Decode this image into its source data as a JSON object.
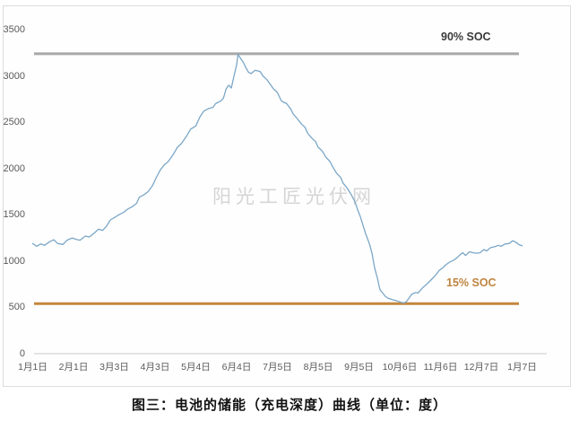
{
  "watermark": {
    "text": "阳光工匠光伏网"
  },
  "caption": {
    "text": "图三：电池的储能（充电深度）曲线（单位：度）"
  },
  "chart_data": {
    "type": "line",
    "title": "",
    "xlabel": "",
    "ylabel": "",
    "unit": "度",
    "ylim": [
      0,
      3500
    ],
    "grid": false,
    "legend": false,
    "axis_color": "#c9c9c9",
    "tick_label_color": "#595959",
    "y_ticks": [
      0,
      500,
      1000,
      1500,
      2000,
      2500,
      3000,
      3500
    ],
    "x_ticks": [
      {
        "label": "1月1日",
        "day": 0
      },
      {
        "label": "2月1日",
        "day": 31
      },
      {
        "label": "3月3日",
        "day": 62
      },
      {
        "label": "4月3日",
        "day": 93
      },
      {
        "label": "5月4日",
        "day": 124
      },
      {
        "label": "6月4日",
        "day": 155
      },
      {
        "label": "7月5日",
        "day": 186
      },
      {
        "label": "8月5日",
        "day": 217
      },
      {
        "label": "9月5日",
        "day": 248
      },
      {
        "label": "10月6日",
        "day": 279
      },
      {
        "label": "11月6日",
        "day": 310
      },
      {
        "label": "12月7日",
        "day": 341
      },
      {
        "label": "1月7日",
        "day": 372
      }
    ],
    "ref_lines": [
      {
        "label": "90% SOC",
        "value": 3240,
        "color": "#a8a8a8"
      },
      {
        "label": "15% SOC",
        "value": 540,
        "color": "#c3873d"
      }
    ],
    "series": [
      {
        "color": "#7ba7c7",
        "points": [
          [
            0,
            1190
          ],
          [
            3,
            1160
          ],
          [
            6,
            1185
          ],
          [
            9,
            1170
          ],
          [
            13,
            1210
          ],
          [
            16,
            1230
          ],
          [
            19,
            1190
          ],
          [
            23,
            1180
          ],
          [
            26,
            1225
          ],
          [
            30,
            1250
          ],
          [
            33,
            1235
          ],
          [
            36,
            1225
          ],
          [
            40,
            1270
          ],
          [
            43,
            1260
          ],
          [
            47,
            1305
          ],
          [
            50,
            1345
          ],
          [
            53,
            1330
          ],
          [
            56,
            1375
          ],
          [
            59,
            1445
          ],
          [
            62,
            1470
          ],
          [
            66,
            1505
          ],
          [
            69,
            1525
          ],
          [
            72,
            1560
          ],
          [
            76,
            1590
          ],
          [
            79,
            1625
          ],
          [
            81,
            1690
          ],
          [
            85,
            1720
          ],
          [
            88,
            1755
          ],
          [
            91,
            1815
          ],
          [
            94,
            1905
          ],
          [
            97,
            1985
          ],
          [
            100,
            2040
          ],
          [
            103,
            2075
          ],
          [
            107,
            2155
          ],
          [
            110,
            2230
          ],
          [
            113,
            2270
          ],
          [
            117,
            2350
          ],
          [
            120,
            2425
          ],
          [
            124,
            2460
          ],
          [
            127,
            2555
          ],
          [
            130,
            2620
          ],
          [
            134,
            2650
          ],
          [
            137,
            2660
          ],
          [
            139,
            2700
          ],
          [
            143,
            2730
          ],
          [
            145,
            2760
          ],
          [
            147,
            2860
          ],
          [
            149,
            2900
          ],
          [
            151,
            2870
          ],
          [
            153,
            3000
          ],
          [
            155,
            3120
          ],
          [
            156,
            3230
          ],
          [
            158,
            3190
          ],
          [
            160,
            3150
          ],
          [
            162,
            3090
          ],
          [
            164,
            3040
          ],
          [
            166,
            3025
          ],
          [
            169,
            3060
          ],
          [
            171,
            3055
          ],
          [
            173,
            3045
          ],
          [
            175,
            3000
          ],
          [
            178,
            2960
          ],
          [
            181,
            2900
          ],
          [
            183,
            2860
          ],
          [
            186,
            2820
          ],
          [
            189,
            2730
          ],
          [
            191,
            2715
          ],
          [
            193,
            2700
          ],
          [
            196,
            2645
          ],
          [
            198,
            2590
          ],
          [
            201,
            2540
          ],
          [
            204,
            2485
          ],
          [
            207,
            2445
          ],
          [
            209,
            2380
          ],
          [
            212,
            2330
          ],
          [
            215,
            2290
          ],
          [
            217,
            2230
          ],
          [
            220,
            2190
          ],
          [
            223,
            2120
          ],
          [
            226,
            2075
          ],
          [
            228,
            2020
          ],
          [
            231,
            1950
          ],
          [
            234,
            1905
          ],
          [
            236,
            1840
          ],
          [
            239,
            1790
          ],
          [
            242,
            1720
          ],
          [
            245,
            1640
          ],
          [
            247,
            1555
          ],
          [
            249,
            1480
          ],
          [
            251,
            1390
          ],
          [
            253,
            1300
          ],
          [
            256,
            1185
          ],
          [
            258,
            1080
          ],
          [
            259,
            1000
          ],
          [
            260,
            920
          ],
          [
            262,
            820
          ],
          [
            263,
            750
          ],
          [
            264,
            690
          ],
          [
            266,
            655
          ],
          [
            268,
            620
          ],
          [
            270,
            600
          ],
          [
            272,
            590
          ],
          [
            274,
            580
          ],
          [
            276,
            575
          ],
          [
            278,
            565
          ],
          [
            280,
            555
          ],
          [
            282,
            548
          ],
          [
            284,
            560
          ],
          [
            286,
            600
          ],
          [
            288,
            640
          ],
          [
            291,
            660
          ],
          [
            293,
            655
          ],
          [
            295,
            690
          ],
          [
            297,
            720
          ],
          [
            299,
            745
          ],
          [
            301,
            770
          ],
          [
            303,
            800
          ],
          [
            305,
            830
          ],
          [
            307,
            860
          ],
          [
            309,
            900
          ],
          [
            312,
            930
          ],
          [
            314,
            960
          ],
          [
            317,
            990
          ],
          [
            320,
            1010
          ],
          [
            322,
            1030
          ],
          [
            325,
            1070
          ],
          [
            327,
            1090
          ],
          [
            329,
            1060
          ],
          [
            332,
            1100
          ],
          [
            335,
            1090
          ],
          [
            337,
            1085
          ],
          [
            340,
            1090
          ],
          [
            343,
            1125
          ],
          [
            345,
            1110
          ],
          [
            348,
            1145
          ],
          [
            351,
            1155
          ],
          [
            354,
            1170
          ],
          [
            356,
            1160
          ],
          [
            359,
            1185
          ],
          [
            362,
            1190
          ],
          [
            365,
            1220
          ],
          [
            367,
            1205
          ],
          [
            370,
            1175
          ],
          [
            372,
            1165
          ]
        ]
      }
    ]
  }
}
